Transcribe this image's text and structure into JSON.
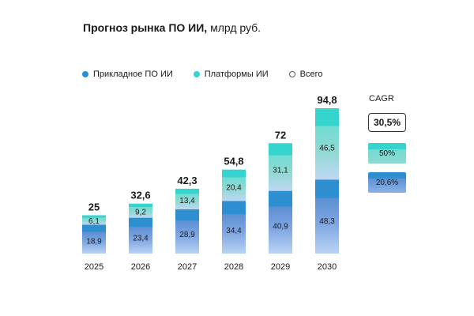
{
  "header": {
    "title_bold": "Прогноз рынка ПО ИИ,",
    "title_unit": "млрд руб."
  },
  "legend": [
    {
      "label": "Прикладное ПО ИИ",
      "color": "#2e8fd0",
      "style": "filled"
    },
    {
      "label": "Платформы ИИ",
      "color": "#35d4cf",
      "style": "filled"
    },
    {
      "label": "Всего",
      "color": "#ffffff",
      "style": "hollow"
    }
  ],
  "cagr": {
    "label": "CAGR",
    "total": "30,5%",
    "platforms": "50%",
    "applied": "20,6%"
  },
  "chart_data": {
    "type": "bar",
    "stacked": true,
    "categories": [
      "2025",
      "2026",
      "2027",
      "2028",
      "2029",
      "2030"
    ],
    "series": [
      {
        "name": "Прикладное ПО ИИ",
        "values": [
          18.9,
          23.4,
          28.9,
          34.4,
          40.9,
          48.3
        ],
        "labels": [
          "18,9",
          "23,4",
          "28,9",
          "34,4",
          "40,9",
          "48,3"
        ],
        "color": "#2e8fd0"
      },
      {
        "name": "Платформы ИИ",
        "values": [
          6.1,
          9.2,
          13.4,
          20.4,
          31.1,
          46.5
        ],
        "labels": [
          "6,1",
          "9,2",
          "13,4",
          "20,4",
          "31,1",
          "46,5"
        ],
        "color": "#35d4cf"
      }
    ],
    "totals": [
      25,
      32.6,
      42.3,
      54.8,
      72,
      94.8
    ],
    "total_labels": [
      "25",
      "32,6",
      "42,3",
      "54,8",
      "72",
      "94,8"
    ],
    "ylim": [
      0,
      94.8
    ],
    "grid": false,
    "legend_position": "top-left"
  }
}
